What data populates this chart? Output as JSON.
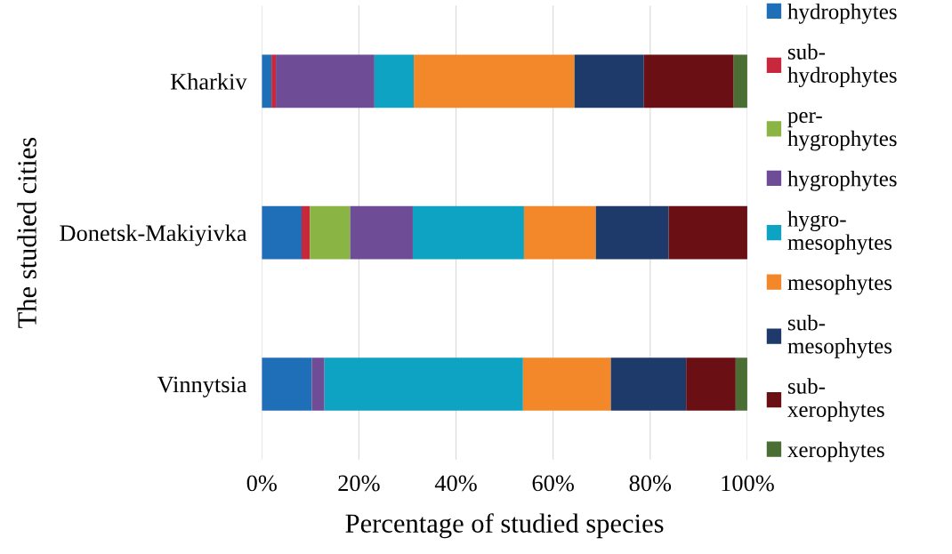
{
  "chart_data": {
    "type": "bar",
    "orientation": "horizontal",
    "stacked": true,
    "xlabel": "Percentage of studied species",
    "ylabel": "The studied cities",
    "categories": [
      "Kharkiv",
      "Donetsk-Makiyivka",
      "Vinnytsia"
    ],
    "series": [
      {
        "name": "hydrophytes",
        "color": "#1f6fb8",
        "values": [
          2.0,
          8.2,
          10.3
        ]
      },
      {
        "name": "sub-\nhydrophytes",
        "color": "#c8283c",
        "values": [
          0.9,
          1.7,
          0
        ]
      },
      {
        "name": "per-\nhygrophytes",
        "color": "#8ab443",
        "values": [
          0,
          8.3,
          0
        ]
      },
      {
        "name": "hygrophytes",
        "color": "#6e4c96",
        "values": [
          20.3,
          12.9,
          2.6
        ]
      },
      {
        "name": "hygro-\nmesophytes",
        "color": "#0ea3c2",
        "values": [
          8.1,
          22.9,
          40.9
        ]
      },
      {
        "name": "mesophytes",
        "color": "#f2882a",
        "values": [
          33.1,
          14.8,
          18.1
        ]
      },
      {
        "name": "sub-\nmesophytes",
        "color": "#1e3a6a",
        "values": [
          14.3,
          15.0,
          15.5
        ]
      },
      {
        "name": "sub-\nxerophytes",
        "color": "#6a0f14",
        "values": [
          18.5,
          16.2,
          10.2
        ]
      },
      {
        "name": "xerophytes",
        "color": "#4a6e34",
        "values": [
          2.8,
          0,
          2.4
        ]
      }
    ],
    "xlim": [
      0,
      100
    ],
    "xticks": [
      {
        "value": 0,
        "label": "0%"
      },
      {
        "value": 20,
        "label": "20%"
      },
      {
        "value": 40,
        "label": "40%"
      },
      {
        "value": 60,
        "label": "60%"
      },
      {
        "value": 80,
        "label": "80%"
      },
      {
        "value": 100,
        "label": "100%"
      }
    ],
    "grid": "x",
    "legend": "right"
  }
}
